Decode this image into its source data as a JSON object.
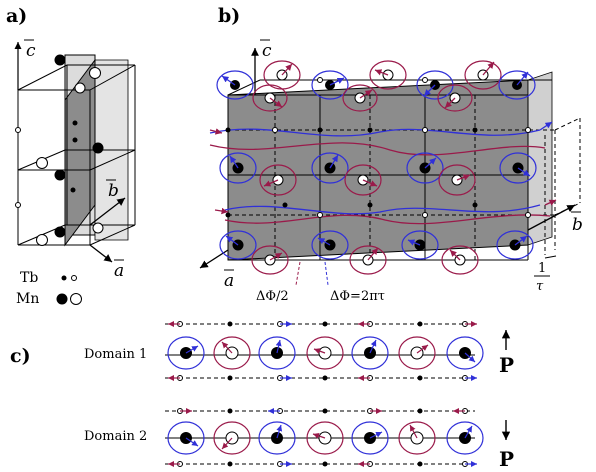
{
  "panels": {
    "a": "a)",
    "b": "b)",
    "c": "c)"
  },
  "axes": {
    "a": "a",
    "b": "b",
    "c": "c"
  },
  "legend": {
    "tb": "Tb",
    "mn": "Mn"
  },
  "annotations": {
    "delta_phi_half": "ΔΦ/2",
    "delta_phi_full": "ΔΦ=2πτ",
    "tau_num": "1",
    "tau_den": "τ"
  },
  "domains": {
    "d1": {
      "label": "Domain 1",
      "polarization": "P",
      "direction": "up"
    },
    "d2": {
      "label": "Domain 2",
      "polarization": "P",
      "direction": "down"
    }
  },
  "colors": {
    "blue": "#3030d8",
    "maroon": "#9a1a4a",
    "gray_plane": "#8c8c8c",
    "light_plane": "#dcdcdc"
  }
}
